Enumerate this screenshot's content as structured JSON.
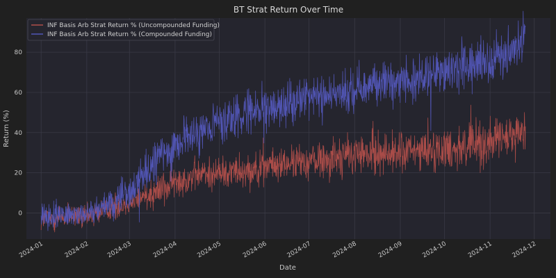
{
  "chart_data": {
    "type": "line",
    "title": "BT Strat Return Over Time",
    "xlabel": "Date",
    "ylabel": "Return (%)",
    "x_ticks": [
      "2024-01",
      "2024-02",
      "2024-03",
      "2024-04",
      "2024-05",
      "2024-06",
      "2024-07",
      "2024-08",
      "2024-09",
      "2024-10",
      "2024-11",
      "2024-12"
    ],
    "y_ticks": [
      0,
      20,
      40,
      60,
      80
    ],
    "xlim": [
      "2023-12-22",
      "2024-12-12"
    ],
    "ylim": [
      -13,
      97
    ],
    "grid": true,
    "legend_position": "top-left",
    "colors": {
      "background": "#202020",
      "plot_background": "#25252e",
      "grid": "#3a3a46",
      "uncompounded": "#b04e4a",
      "compounded": "#5256b8"
    },
    "series": [
      {
        "name": "INF Basis Arb Strat Return % (Uncompounded Funding)",
        "color": "#b04e4a",
        "noise": [
          3,
          3,
          3,
          4,
          4,
          4,
          4,
          4,
          5,
          5,
          5,
          5,
          6,
          5
        ],
        "points": [
          {
            "x": "2024-01-01",
            "y": -3
          },
          {
            "x": "2024-01-15",
            "y": -2
          },
          {
            "x": "2024-02-01",
            "y": -2
          },
          {
            "x": "2024-02-15",
            "y": 2
          },
          {
            "x": "2024-03-01",
            "y": 5
          },
          {
            "x": "2024-03-15",
            "y": 10
          },
          {
            "x": "2024-04-01",
            "y": 15
          },
          {
            "x": "2024-04-15",
            "y": 19
          },
          {
            "x": "2024-05-01",
            "y": 20
          },
          {
            "x": "2024-06-01",
            "y": 23
          },
          {
            "x": "2024-07-01",
            "y": 26
          },
          {
            "x": "2024-08-01",
            "y": 29
          },
          {
            "x": "2024-09-01",
            "y": 30
          },
          {
            "x": "2024-10-01",
            "y": 32
          },
          {
            "x": "2024-11-01",
            "y": 35
          },
          {
            "x": "2024-11-25",
            "y": 40
          }
        ]
      },
      {
        "name": "INF Basis Arb Strat Return % (Compounded Funding)",
        "color": "#5256b8",
        "noise": [
          3,
          3,
          4,
          5,
          5,
          5,
          5,
          5,
          5,
          5,
          5,
          5,
          6,
          6
        ],
        "points": [
          {
            "x": "2024-01-01",
            "y": -2
          },
          {
            "x": "2024-01-15",
            "y": -1
          },
          {
            "x": "2024-02-01",
            "y": 0
          },
          {
            "x": "2024-02-15",
            "y": 4
          },
          {
            "x": "2024-03-01",
            "y": 10
          },
          {
            "x": "2024-03-15",
            "y": 22
          },
          {
            "x": "2024-04-01",
            "y": 33
          },
          {
            "x": "2024-04-15",
            "y": 40
          },
          {
            "x": "2024-05-01",
            "y": 45
          },
          {
            "x": "2024-06-01",
            "y": 52
          },
          {
            "x": "2024-07-01",
            "y": 58
          },
          {
            "x": "2024-08-01",
            "y": 62
          },
          {
            "x": "2024-09-01",
            "y": 66
          },
          {
            "x": "2024-10-01",
            "y": 70
          },
          {
            "x": "2024-11-01",
            "y": 76
          },
          {
            "x": "2024-11-25",
            "y": 85
          }
        ]
      }
    ]
  }
}
